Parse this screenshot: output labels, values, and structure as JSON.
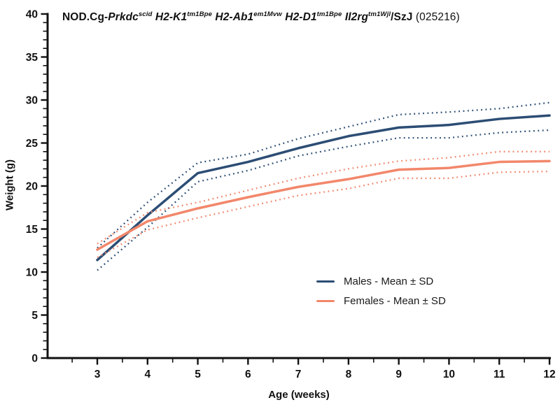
{
  "page": {
    "background": "#ffffff",
    "text_color": "#111111"
  },
  "chart_data": {
    "type": "line",
    "title": {
      "plain": "NOD.Cg-Prkdc scid H2-K1 tm1Bpe H2-Ab1 em1Mvw H2-D1 tm1Bpe Il2rg tm1Wjl /SzJ (025216)",
      "segments": [
        {
          "text": "NOD.Cg-",
          "bold": true,
          "italic": false,
          "sup": false
        },
        {
          "text": "Prkdc",
          "bold": true,
          "italic": true,
          "sup": false
        },
        {
          "text": "scid",
          "bold": true,
          "italic": true,
          "sup": true
        },
        {
          "text": " ",
          "bold": true,
          "italic": false,
          "sup": false
        },
        {
          "text": "H2-K1",
          "bold": true,
          "italic": true,
          "sup": false
        },
        {
          "text": "tm1Bpe",
          "bold": true,
          "italic": true,
          "sup": true
        },
        {
          "text": " ",
          "bold": true,
          "italic": false,
          "sup": false
        },
        {
          "text": "H2-Ab1",
          "bold": true,
          "italic": true,
          "sup": false
        },
        {
          "text": "em1Mvw",
          "bold": true,
          "italic": true,
          "sup": true
        },
        {
          "text": " ",
          "bold": true,
          "italic": false,
          "sup": false
        },
        {
          "text": "H2-D1",
          "bold": true,
          "italic": true,
          "sup": false
        },
        {
          "text": "tm1Bpe",
          "bold": true,
          "italic": true,
          "sup": true
        },
        {
          "text": " ",
          "bold": true,
          "italic": false,
          "sup": false
        },
        {
          "text": "Il2rg",
          "bold": true,
          "italic": true,
          "sup": false
        },
        {
          "text": "tm1Wjl",
          "bold": true,
          "italic": true,
          "sup": true
        },
        {
          "text": "/SzJ",
          "bold": true,
          "italic": false,
          "sup": false
        },
        {
          "text": " (025216)",
          "bold": false,
          "italic": false,
          "sup": false
        }
      ]
    },
    "xlabel": "Age (weeks)",
    "ylabel": "Weight (g)",
    "x": [
      3,
      4,
      5,
      6,
      7,
      8,
      9,
      10,
      11,
      12
    ],
    "x_ticks": [
      3,
      4,
      5,
      6,
      7,
      8,
      9,
      10,
      11,
      12
    ],
    "x_minor_step": 0.5,
    "xlim": [
      2,
      12
    ],
    "ylim": [
      0,
      40
    ],
    "y_ticks": [
      0,
      5,
      10,
      15,
      20,
      25,
      30,
      35,
      40
    ],
    "y_minor_step": 1,
    "grid": false,
    "legend_position": "inside-center-right",
    "series": [
      {
        "name": "Males - Mean ± SD",
        "color": "#2c4d74",
        "band_style": "dotted",
        "mean": [
          11.4,
          16.6,
          21.5,
          22.8,
          24.4,
          25.8,
          26.8,
          27.1,
          27.8,
          28.2
        ],
        "upper_sd": [
          12.8,
          18.1,
          22.7,
          23.7,
          25.5,
          26.9,
          28.3,
          28.6,
          29.0,
          29.7
        ],
        "lower_sd": [
          10.2,
          15.2,
          20.5,
          21.8,
          23.5,
          24.6,
          25.6,
          25.6,
          26.2,
          26.5
        ]
      },
      {
        "name": "Females - Mean ± SD",
        "color": "#f2876b",
        "band_style": "dotted",
        "mean": [
          12.6,
          15.9,
          17.4,
          18.7,
          19.9,
          20.8,
          21.9,
          22.1,
          22.8,
          22.9
        ],
        "upper_sd": [
          13.3,
          16.9,
          18.1,
          19.5,
          20.9,
          22.0,
          22.9,
          23.3,
          24.0,
          24.0
        ],
        "lower_sd": [
          11.7,
          14.9,
          16.3,
          17.6,
          18.9,
          19.7,
          20.9,
          20.9,
          21.6,
          21.7
        ]
      }
    ]
  }
}
